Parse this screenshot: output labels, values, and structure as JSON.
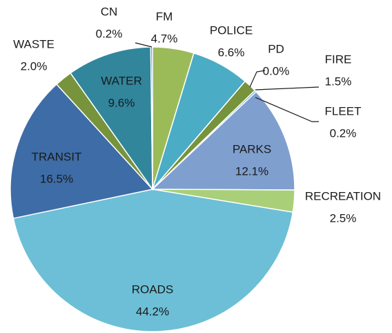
{
  "chart_data": {
    "type": "pie",
    "categories": [
      "FM",
      "POLICE",
      "PD",
      "FIRE",
      "FLEET",
      "PARKS",
      "RECREATION",
      "ROADS",
      "TRANSIT",
      "WASTE",
      "WATER",
      "CN"
    ],
    "values": [
      4.7,
      6.6,
      0.0,
      1.5,
      0.2,
      12.1,
      2.5,
      44.2,
      16.5,
      2.0,
      9.6,
      0.2
    ],
    "value_labels": [
      "4.7%",
      "6.6%",
      "0.0%",
      "1.5%",
      "0.2%",
      "12.1%",
      "2.5%",
      "44.2%",
      "16.5%",
      "2.0%",
      "9.6%",
      "0.2%"
    ],
    "colors": [
      "#9bbb59",
      "#4bacc6",
      "#1f497d",
      "#77933c",
      "#4bacc6",
      "#7f9fcf",
      "#a9cf78",
      "#6cbfd6",
      "#3e6ca6",
      "#77933c",
      "#31869c",
      "#4f81bd"
    ]
  }
}
